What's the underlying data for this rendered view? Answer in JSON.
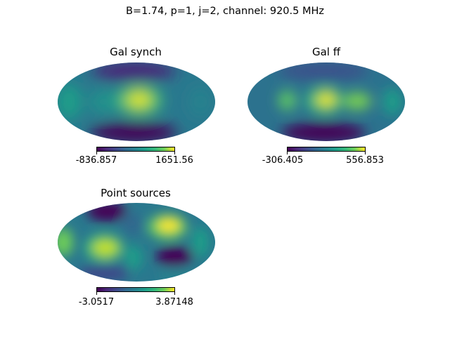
{
  "figure": {
    "suptitle": "B=1.74, p=1, j=2, channel: 920.5 MHz"
  },
  "chart_data": [
    {
      "type": "heatmap",
      "projection": "mollweide",
      "colormap": "viridis",
      "title": "Gal synch",
      "colorbar": {
        "min": "-836.857",
        "max": "1651.56"
      }
    },
    {
      "type": "heatmap",
      "projection": "mollweide",
      "colormap": "viridis",
      "title": "Gal ff",
      "colorbar": {
        "min": "-306.405",
        "max": "556.853"
      }
    },
    {
      "type": "heatmap",
      "projection": "mollweide",
      "colormap": "viridis",
      "title": "Point sources",
      "colorbar": {
        "min": "-3.0517",
        "max": "3.87148"
      }
    }
  ]
}
